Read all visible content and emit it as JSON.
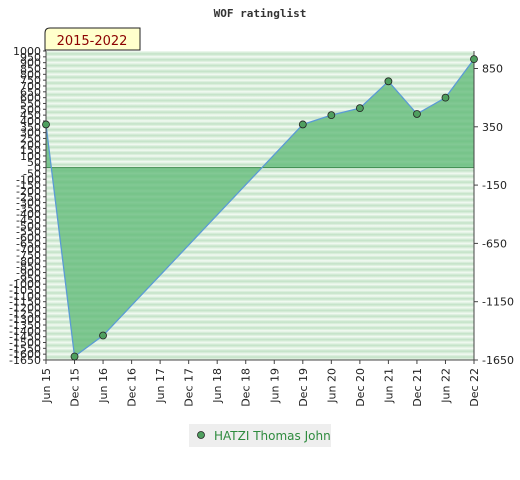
{
  "chart_data": {
    "type": "area",
    "title": "WOF ratinglist",
    "period_label": "2015-2022",
    "x_categories": [
      "Jun 15",
      "Dec 15",
      "Jun 16",
      "Dec 16",
      "Jun 17",
      "Dec 17",
      "Jun 18",
      "Dec 18",
      "Jun 19",
      "Dec 19",
      "Jun 20",
      "Dec 20",
      "Jun 21",
      "Dec 21",
      "Jun 22",
      "Dec 22"
    ],
    "series": [
      {
        "name": "HATZI Thomas John",
        "x": [
          "Jun 15",
          "Dec 15",
          "Jun 16",
          "Dec 19",
          "Jun 20",
          "Dec 20",
          "Jun 21",
          "Dec 21",
          "Jun 22",
          "Dec 22"
        ],
        "values": [
          370,
          -1620,
          -1440,
          370,
          450,
          510,
          740,
          460,
          600,
          930
        ]
      }
    ],
    "ylim": [
      -1650,
      1000
    ],
    "left_axis_ticks": [
      "1000",
      "950",
      "900",
      "850",
      "800",
      "750",
      "700",
      "650",
      "600",
      "550",
      "500",
      "450",
      "400",
      "350",
      "300",
      "250",
      "200",
      "150",
      "100",
      "50",
      "0",
      "-50",
      "-100",
      "-150",
      "-200",
      "-250",
      "-300",
      "-350",
      "-400",
      "-450",
      "-500",
      "-550",
      "-600",
      "-650",
      "-700",
      "-750",
      "-800",
      "-850",
      "-900",
      "-950",
      "-1000",
      "-1050",
      "-1100",
      "-1150",
      "-1200",
      "-1250",
      "-1300",
      "-1350",
      "-1400",
      "-1450",
      "-1500",
      "-1550",
      "-1600",
      "-1650"
    ],
    "right_axis_ticks": [
      850,
      350,
      -150,
      -650,
      -1150,
      -1650
    ],
    "grid": true,
    "legend_position": "bottom-center",
    "colors": {
      "fill": "#5cb874",
      "line": "#5b9bd5",
      "marker": "#4f9f5f",
      "band_dark": "#c2e2c6",
      "band_light": "#f2faf2",
      "badge_bg": "#ffffcc",
      "badge_text": "#8b0000",
      "legend_text": "#2e8b3e",
      "legend_bg": "#eeeeee"
    }
  }
}
